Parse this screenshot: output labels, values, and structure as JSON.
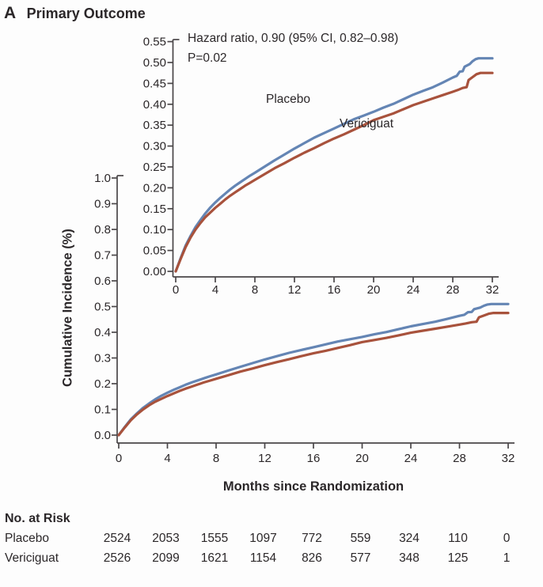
{
  "title": {
    "panel": "A",
    "text": "Primary Outcome"
  },
  "annotation": {
    "line1": "Hazard ratio, 0.90 (95% CI, 0.82–0.98)",
    "line2": "P=0.02"
  },
  "axes": {
    "x_label": "Months since Randomization",
    "y_label": "Cumulative Incidence (%)",
    "x_tick_labels": [
      "0",
      "4",
      "8",
      "12",
      "16",
      "20",
      "24",
      "28",
      "32"
    ],
    "main_y_tick_labels": [
      "1.0",
      "0.9",
      "0.8",
      "0.7",
      "0.6",
      "0.5",
      "0.4",
      "0.3",
      "0.2",
      "0.1",
      "0.0"
    ],
    "inset_y_tick_labels": [
      "0.55",
      "0.50",
      "0.45",
      "0.40",
      "0.35",
      "0.30",
      "0.25",
      "0.20",
      "0.15",
      "0.10",
      "0.05",
      "0.00"
    ]
  },
  "series_labels": {
    "placebo": "Placebo",
    "vericiguat": "Vericiguat"
  },
  "colors": {
    "placebo": "#6485b4",
    "vericiguat": "#a8523c",
    "axis": "#4a4648",
    "text": "#2b2729"
  },
  "risk_table": {
    "header": "No. at Risk",
    "rows": [
      {
        "label": "Placebo",
        "values": [
          "2524",
          "2053",
          "1555",
          "1097",
          "772",
          "559",
          "324",
          "110",
          "0"
        ]
      },
      {
        "label": "Vericiguat",
        "values": [
          "2526",
          "2099",
          "1621",
          "1154",
          "826",
          "577",
          "348",
          "125",
          "1"
        ]
      }
    ]
  },
  "chart_data": {
    "type": "line",
    "title": "Primary Outcome",
    "xlabel": "Months since Randomization",
    "ylabel": "Cumulative Incidence (%)",
    "xlim": [
      0,
      32
    ],
    "x_ticks": [
      0,
      4,
      8,
      12,
      16,
      20,
      24,
      28,
      32
    ],
    "main_ylim": [
      0.0,
      1.0
    ],
    "inset_ylim": [
      0.0,
      0.55
    ],
    "grid": false,
    "annotations": [
      "Hazard ratio, 0.90 (95% CI, 0.82–0.98)",
      "P=0.02"
    ],
    "series": [
      {
        "name": "Placebo",
        "color": "#6485b4",
        "points": [
          [
            0,
            0
          ],
          [
            0.5,
            0.032
          ],
          [
            1,
            0.062
          ],
          [
            1.5,
            0.085
          ],
          [
            2,
            0.106
          ],
          [
            2.5,
            0.123
          ],
          [
            3,
            0.139
          ],
          [
            3.5,
            0.153
          ],
          [
            4,
            0.165
          ],
          [
            4.5,
            0.176
          ],
          [
            5,
            0.186
          ],
          [
            5.5,
            0.196
          ],
          [
            6,
            0.205
          ],
          [
            6.5,
            0.213
          ],
          [
            7,
            0.221
          ],
          [
            7.5,
            0.229
          ],
          [
            8,
            0.236
          ],
          [
            9,
            0.251
          ],
          [
            10,
            0.266
          ],
          [
            11,
            0.28
          ],
          [
            12,
            0.294
          ],
          [
            13,
            0.307
          ],
          [
            14,
            0.32
          ],
          [
            15,
            0.331
          ],
          [
            16,
            0.342
          ],
          [
            17,
            0.353
          ],
          [
            18,
            0.364
          ],
          [
            19,
            0.373
          ],
          [
            20,
            0.382
          ],
          [
            21,
            0.392
          ],
          [
            22,
            0.401
          ],
          [
            23,
            0.412
          ],
          [
            24,
            0.423
          ],
          [
            25,
            0.432
          ],
          [
            26,
            0.441
          ],
          [
            27,
            0.452
          ],
          [
            28,
            0.464
          ],
          [
            28.4,
            0.468
          ],
          [
            28.7,
            0.478
          ],
          [
            29,
            0.479
          ],
          [
            29.2,
            0.49
          ],
          [
            29.7,
            0.496
          ],
          [
            30,
            0.503
          ],
          [
            30.3,
            0.508
          ],
          [
            30.6,
            0.51
          ],
          [
            32,
            0.51
          ]
        ]
      },
      {
        "name": "Vericiguat",
        "color": "#a8523c",
        "points": [
          [
            0,
            0
          ],
          [
            0.5,
            0.03
          ],
          [
            1,
            0.058
          ],
          [
            1.5,
            0.081
          ],
          [
            2,
            0.1
          ],
          [
            2.5,
            0.116
          ],
          [
            3,
            0.13
          ],
          [
            3.5,
            0.141
          ],
          [
            4,
            0.152
          ],
          [
            4.5,
            0.162
          ],
          [
            5,
            0.172
          ],
          [
            5.5,
            0.181
          ],
          [
            6,
            0.189
          ],
          [
            6.5,
            0.197
          ],
          [
            7,
            0.205
          ],
          [
            7.5,
            0.212
          ],
          [
            8,
            0.219
          ],
          [
            9,
            0.233
          ],
          [
            10,
            0.247
          ],
          [
            11,
            0.259
          ],
          [
            12,
            0.272
          ],
          [
            13,
            0.284
          ],
          [
            14,
            0.295
          ],
          [
            15,
            0.307
          ],
          [
            16,
            0.318
          ],
          [
            17,
            0.328
          ],
          [
            18,
            0.339
          ],
          [
            19,
            0.35
          ],
          [
            20,
            0.362
          ],
          [
            21,
            0.37
          ],
          [
            22,
            0.378
          ],
          [
            23,
            0.388
          ],
          [
            24,
            0.398
          ],
          [
            25,
            0.406
          ],
          [
            26,
            0.414
          ],
          [
            27,
            0.422
          ],
          [
            28,
            0.43
          ],
          [
            28.5,
            0.434
          ],
          [
            29,
            0.439
          ],
          [
            29.4,
            0.441
          ],
          [
            29.6,
            0.458
          ],
          [
            30,
            0.465
          ],
          [
            30.4,
            0.472
          ],
          [
            30.8,
            0.475
          ],
          [
            32,
            0.475
          ]
        ]
      }
    ],
    "risk_table_months": [
      0,
      4,
      8,
      12,
      16,
      20,
      24,
      28,
      32
    ]
  }
}
